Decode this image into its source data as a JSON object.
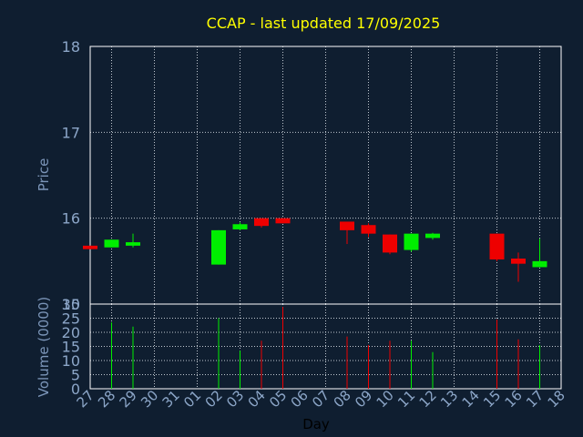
{
  "chart_data": [
    {
      "type": "candlestick",
      "title": "CCAP - last updated 17/09/2025",
      "ylabel": "Price",
      "ylim": [
        15,
        18
      ],
      "yticks": [
        "15",
        "16",
        "17",
        "18"
      ],
      "grid": true,
      "x": [
        "27",
        "28",
        "29",
        "30",
        "31",
        "01",
        "02",
        "03",
        "04",
        "05",
        "06",
        "07",
        "08",
        "09",
        "10",
        "11",
        "12",
        "13",
        "14",
        "15",
        "16",
        "17",
        "18"
      ],
      "candles": [
        {
          "day": "27",
          "open": 15.68,
          "close": 15.64,
          "high": 15.68,
          "low": 15.64
        },
        {
          "day": "28",
          "open": 15.66,
          "close": 15.75,
          "high": 15.75,
          "low": 15.66
        },
        {
          "day": "29",
          "open": 15.68,
          "close": 15.72,
          "high": 15.82,
          "low": 15.66
        },
        {
          "day": "02",
          "open": 15.46,
          "close": 15.86,
          "high": 15.86,
          "low": 15.46
        },
        {
          "day": "03",
          "open": 15.87,
          "close": 15.93,
          "high": 15.95,
          "low": 15.86
        },
        {
          "day": "04",
          "open": 16.0,
          "close": 15.91,
          "high": 16.0,
          "low": 15.89
        },
        {
          "day": "05",
          "open": 16.0,
          "close": 15.94,
          "high": 16.0,
          "low": 15.94
        },
        {
          "day": "08",
          "open": 15.96,
          "close": 15.86,
          "high": 15.96,
          "low": 15.7
        },
        {
          "day": "09",
          "open": 15.92,
          "close": 15.82,
          "high": 15.94,
          "low": 15.78
        },
        {
          "day": "10",
          "open": 15.81,
          "close": 15.6,
          "high": 15.81,
          "low": 15.58
        },
        {
          "day": "11",
          "open": 15.63,
          "close": 15.82,
          "high": 15.82,
          "low": 15.61
        },
        {
          "day": "12",
          "open": 15.77,
          "close": 15.82,
          "high": 15.83,
          "low": 15.75
        },
        {
          "day": "15",
          "open": 15.82,
          "close": 15.52,
          "high": 15.82,
          "low": 15.5
        },
        {
          "day": "16",
          "open": 15.53,
          "close": 15.47,
          "high": 15.6,
          "low": 15.26
        },
        {
          "day": "17",
          "open": 15.43,
          "close": 15.5,
          "high": 15.76,
          "low": 15.43
        }
      ]
    },
    {
      "type": "bar",
      "xlabel": "Day",
      "ylabel": "Volume (0000)",
      "ylim": [
        0,
        30
      ],
      "yticks": [
        "0",
        "5",
        "10",
        "15",
        "20",
        "25",
        "30"
      ],
      "grid": true,
      "x": [
        "27",
        "28",
        "29",
        "30",
        "31",
        "01",
        "02",
        "03",
        "04",
        "05",
        "06",
        "07",
        "08",
        "09",
        "10",
        "11",
        "12",
        "13",
        "14",
        "15",
        "16",
        "17",
        "18"
      ],
      "bars": [
        {
          "day": "28",
          "value": 23.5,
          "direction": "up"
        },
        {
          "day": "29",
          "value": 22.0,
          "direction": "up"
        },
        {
          "day": "02",
          "value": 25.0,
          "direction": "up"
        },
        {
          "day": "03",
          "value": 13.5,
          "direction": "up"
        },
        {
          "day": "04",
          "value": 17.0,
          "direction": "down"
        },
        {
          "day": "05",
          "value": 29.0,
          "direction": "down"
        },
        {
          "day": "08",
          "value": 18.5,
          "direction": "down"
        },
        {
          "day": "09",
          "value": 15.5,
          "direction": "down"
        },
        {
          "day": "10",
          "value": 17.0,
          "direction": "down"
        },
        {
          "day": "11",
          "value": 17.0,
          "direction": "up"
        },
        {
          "day": "12",
          "value": 13.0,
          "direction": "up"
        },
        {
          "day": "15",
          "value": 24.5,
          "direction": "down"
        },
        {
          "day": "16",
          "value": 17.5,
          "direction": "down"
        },
        {
          "day": "17",
          "value": 15.5,
          "direction": "up"
        }
      ]
    }
  ],
  "colors": {
    "background": "#0f1e30",
    "title": "#ffff00",
    "axis_text": "#7b95b8",
    "tick_text": "#8ca6c8",
    "day_label": "#000000",
    "grid": "#c0c8d0",
    "frame": "#ffffff",
    "up": "#00ee00",
    "down": "#ee0000"
  }
}
